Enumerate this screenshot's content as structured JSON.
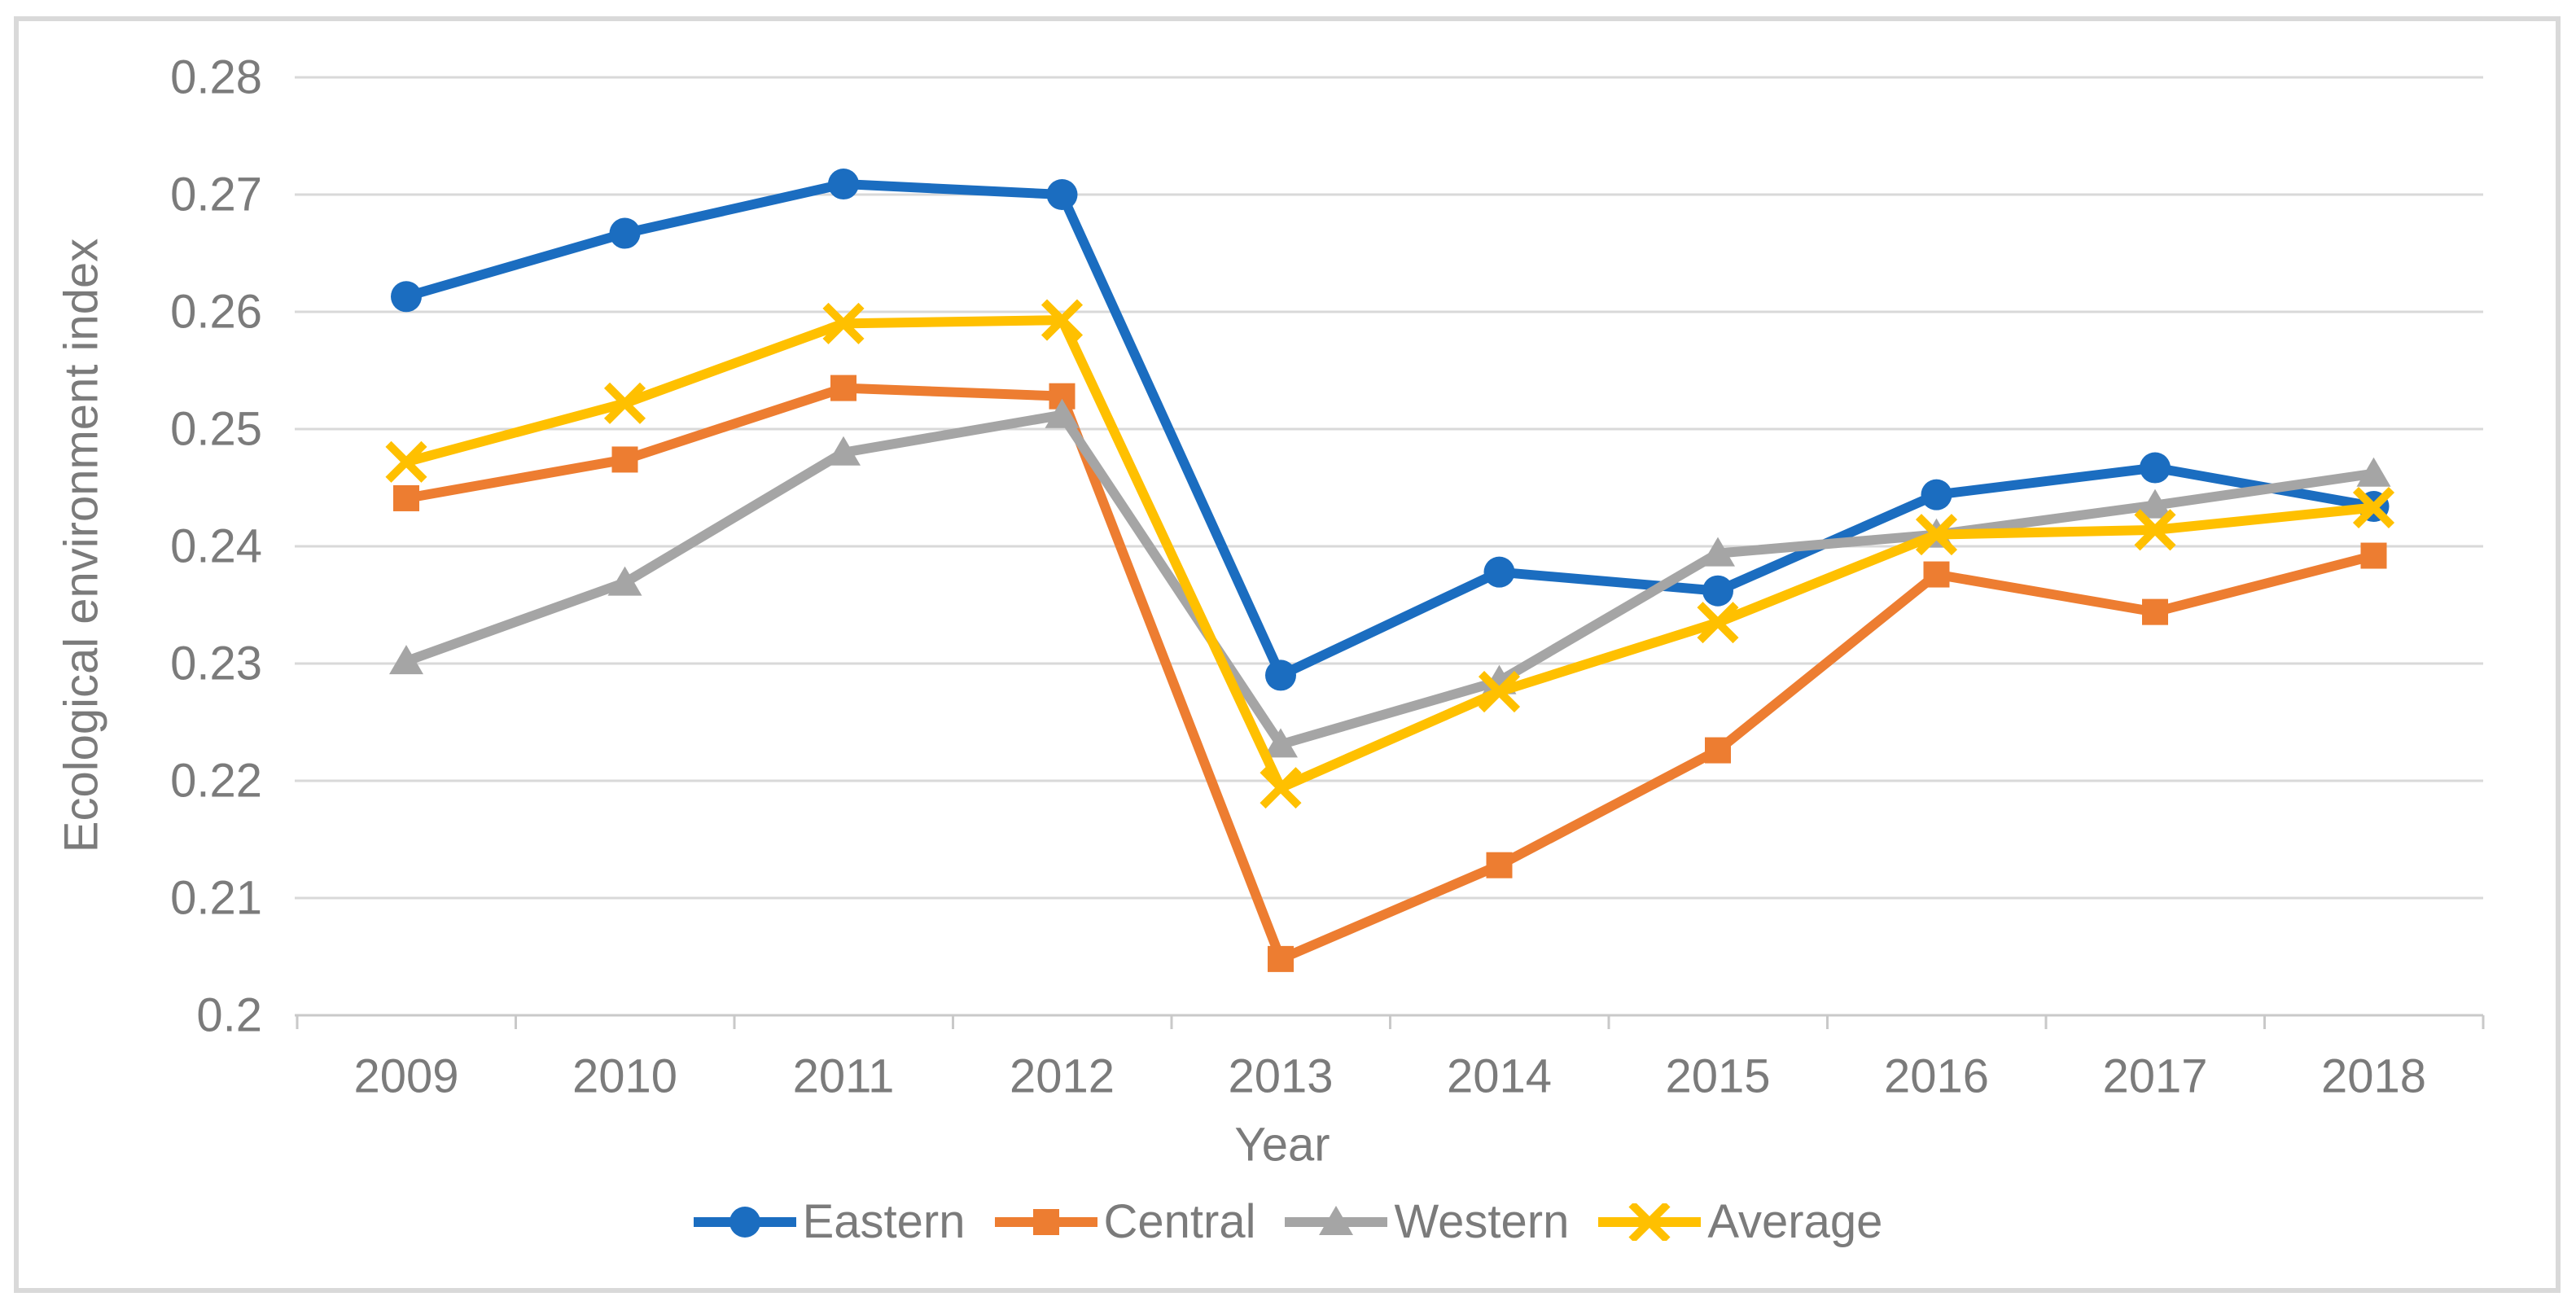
{
  "figure": {
    "background": "#FFFFFF",
    "border_color": "#D9D9D9",
    "text_color": "#7B7B7B",
    "gridline_color": "#D9D9D9",
    "axisline_color": "#C9C9C9"
  },
  "chart_data": {
    "type": "line",
    "title": "",
    "xlabel": "Year",
    "ylabel": "Ecological environment index",
    "x_categories": [
      "2009",
      "2010",
      "2011",
      "2012",
      "2013",
      "2014",
      "2015",
      "2016",
      "2017",
      "2018"
    ],
    "y_tick_labels": [
      "0.28",
      "0.27",
      "0.26",
      "0.25",
      "0.24",
      "0.23",
      "0.22",
      "0.21",
      "0.2"
    ],
    "y_tick_values": [
      0.28,
      0.27,
      0.26,
      0.25,
      0.24,
      0.23,
      0.22,
      0.21,
      0.2
    ],
    "ylim": [
      0.2,
      0.28
    ],
    "grid": "horizontal-major",
    "legend_position": "bottom",
    "series": [
      {
        "name": "Eastern",
        "color": "#1B6DC0",
        "marker": "circle",
        "values": [
          0.2613,
          0.2667,
          0.2709,
          0.27,
          0.229,
          0.2378,
          0.2362,
          0.2444,
          0.2467,
          0.2434
        ]
      },
      {
        "name": "Central",
        "color": "#ED7D31",
        "marker": "square",
        "values": [
          0.2441,
          0.2474,
          0.2535,
          0.2528,
          0.2048,
          0.2128,
          0.2226,
          0.2376,
          0.2344,
          0.2392
        ]
      },
      {
        "name": "Western",
        "color": "#A5A5A5",
        "marker": "triangle",
        "values": [
          0.2302,
          0.2369,
          0.248,
          0.2512,
          0.2231,
          0.2285,
          0.2394,
          0.241,
          0.2435,
          0.2462
        ]
      },
      {
        "name": "Average",
        "color": "#FFC000",
        "marker": "x",
        "values": [
          0.2472,
          0.2522,
          0.259,
          0.2593,
          0.2194,
          0.2276,
          0.2335,
          0.241,
          0.2414,
          0.2433
        ]
      }
    ]
  }
}
